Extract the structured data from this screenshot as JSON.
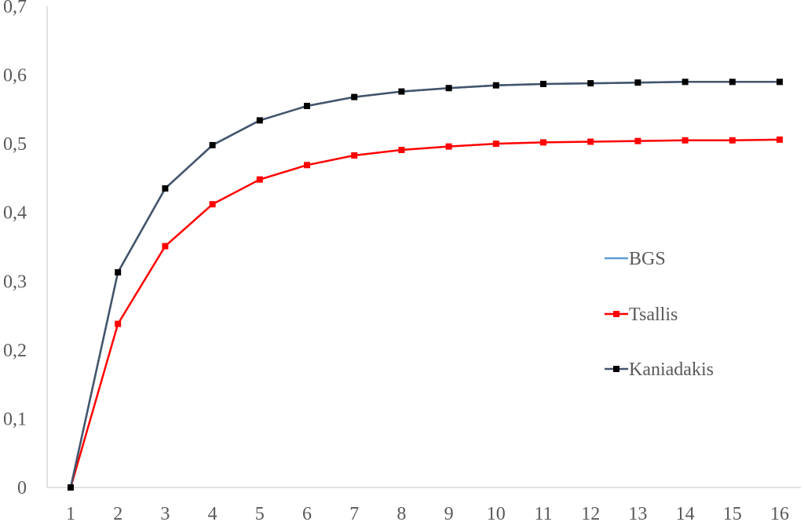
{
  "chart_data": {
    "type": "line",
    "title": "",
    "xlabel": "",
    "ylabel": "",
    "categories": [
      "1",
      "2",
      "3",
      "4",
      "5",
      "6",
      "7",
      "8",
      "9",
      "10",
      "11",
      "12",
      "13",
      "14",
      "15",
      "16"
    ],
    "ylim": [
      0,
      0.7
    ],
    "yticks": [
      "0",
      "0,1",
      "0,2",
      "0,3",
      "0,4",
      "0,5",
      "0,6",
      "0,7"
    ],
    "grid": false,
    "legend_position": "right",
    "series": [
      {
        "name": "BGS",
        "color": "#5b9bd5",
        "marker": "none",
        "values": [
          0,
          0.313,
          0.435,
          0.498,
          0.534,
          0.555,
          0.568,
          0.576,
          0.581,
          0.585,
          0.587,
          0.588,
          0.589,
          0.59,
          0.59,
          0.59
        ]
      },
      {
        "name": "Tsallis",
        "color": "#ff0000",
        "marker": "square",
        "values": [
          0,
          0.238,
          0.351,
          0.412,
          0.448,
          0.469,
          0.483,
          0.491,
          0.496,
          0.5,
          0.502,
          0.503,
          0.504,
          0.505,
          0.505,
          0.506
        ]
      },
      {
        "name": "Kaniadakis",
        "color": "#44546a",
        "marker": "square",
        "values": [
          0,
          0.313,
          0.435,
          0.498,
          0.534,
          0.555,
          0.568,
          0.576,
          0.581,
          0.585,
          0.587,
          0.588,
          0.589,
          0.59,
          0.59,
          0.59
        ]
      }
    ]
  }
}
